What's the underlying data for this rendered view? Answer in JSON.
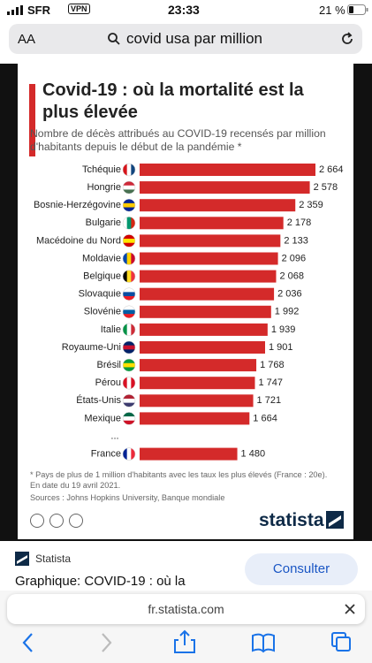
{
  "status_bar": {
    "carrier": "SFR",
    "vpn": "VPN",
    "time": "23:33",
    "battery": "21 %"
  },
  "search_bar": {
    "text_size": "AA",
    "query": "covid usa par million"
  },
  "chart_data": {
    "type": "bar",
    "orientation": "horizontal",
    "title": "Covid-19 : où la mortalité est la plus élevée",
    "subtitle": "Nombre de décès attribués au COVID-19 recensés par million d'habitants depuis le début de la pandémie *",
    "categories": [
      "Tchéquie",
      "Hongrie",
      "Bosnie-Herzégovine",
      "Bulgarie",
      "Macédoine du Nord",
      "Moldavie",
      "Belgique",
      "Slovaquie",
      "Slovénie",
      "Italie",
      "Royaume-Uni",
      "Brésil",
      "Pérou",
      "États-Unis",
      "Mexique",
      "...",
      "France"
    ],
    "values": [
      2664,
      2578,
      2359,
      2178,
      2133,
      2096,
      2068,
      2036,
      1992,
      1939,
      1901,
      1768,
      1747,
      1721,
      1664,
      null,
      1480
    ],
    "value_labels": [
      "2 664",
      "2 578",
      "2 359",
      "2 178",
      "2 133",
      "2 096",
      "2 068",
      "2 036",
      "1 992",
      "1 939",
      "1 901",
      "1 768",
      "1 747",
      "1 721",
      "1 664",
      null,
      "1 480"
    ],
    "color": "#d42a2a",
    "footnote": "* Pays de plus de 1 million d'habitants avec les taux les plus élevés (France : 20e).",
    "date_note": "En date du 19 avril 2021.",
    "source": "Sources : Johns Hopkins University, Banque mondiale",
    "brand": "statista"
  },
  "result": {
    "site": "Statista",
    "button": "Consulter",
    "headline": "Graphique: COVID-19 : où la"
  },
  "bottom_bar": {
    "domain": "fr.statista.com"
  }
}
